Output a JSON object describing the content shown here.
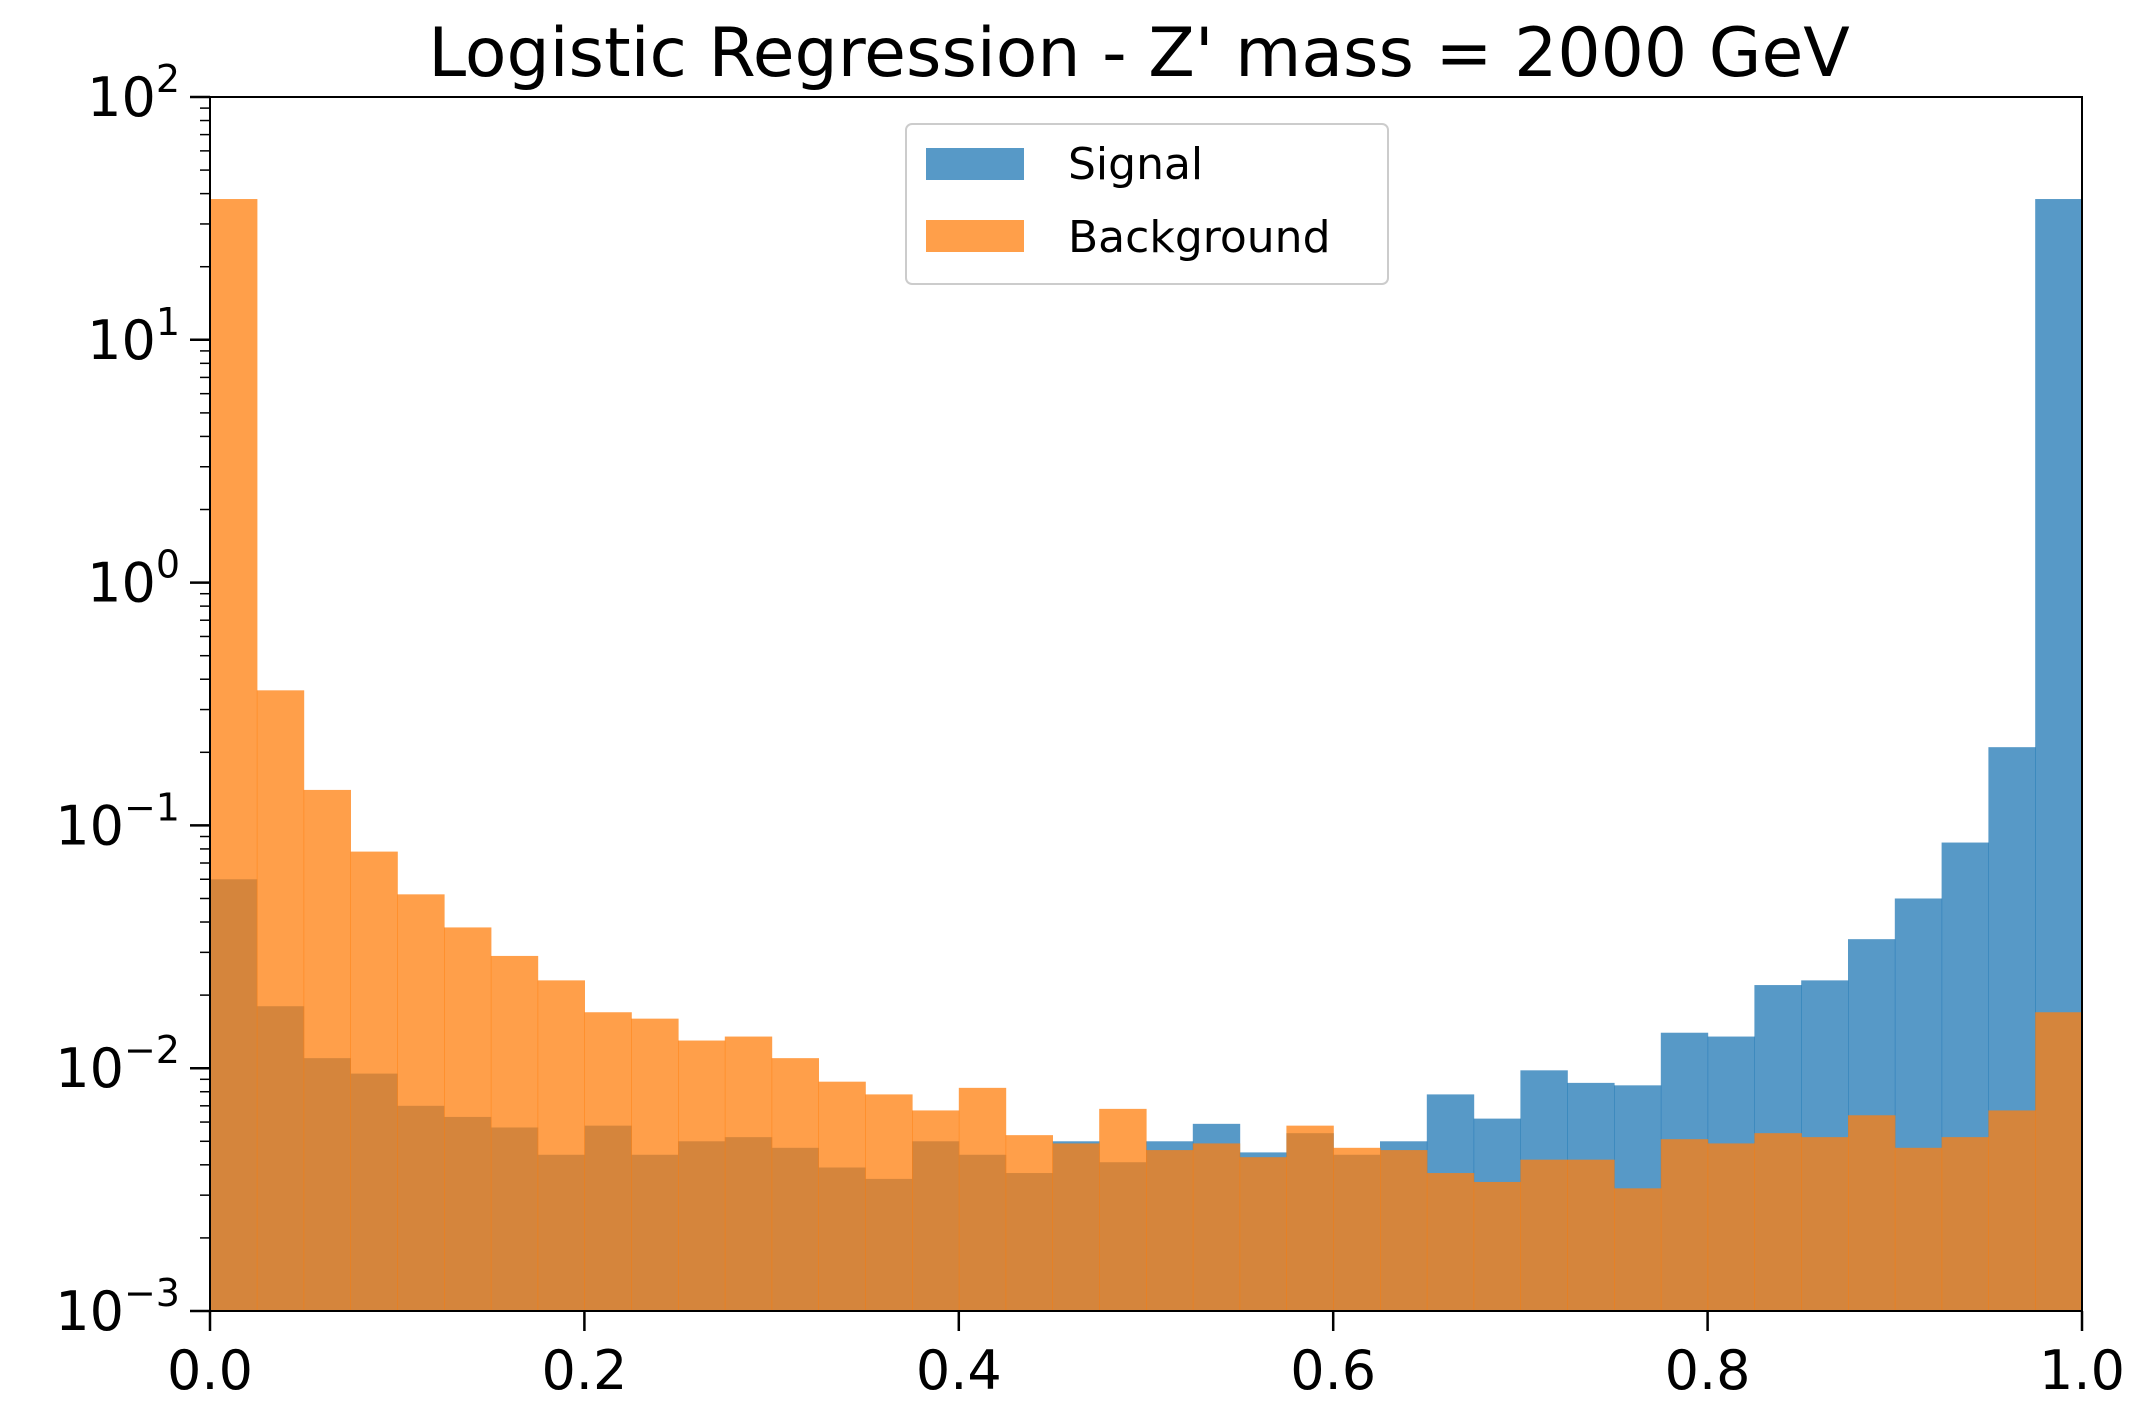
{
  "chart_data": {
    "type": "bar",
    "title": "Logistic Regression - Z' mass = 2000 GeV",
    "xlabel": "",
    "ylabel": "",
    "x_scale": "linear",
    "y_scale": "log",
    "xlim": [
      0.0,
      1.0
    ],
    "ylim": [
      0.001,
      100
    ],
    "bins": 40,
    "x_ticks": [
      0.0,
      0.2,
      0.4,
      0.6,
      0.8,
      1.0
    ],
    "x_tick_labels": [
      "0.0",
      "0.2",
      "0.4",
      "0.6",
      "0.8",
      "1.0"
    ],
    "y_ticks": [
      {
        "value": 0.001,
        "base": "10",
        "exp": "−3"
      },
      {
        "value": 0.01,
        "base": "10",
        "exp": "−2"
      },
      {
        "value": 0.1,
        "base": "10",
        "exp": "−1"
      },
      {
        "value": 1,
        "base": "10",
        "exp": "0"
      },
      {
        "value": 10,
        "base": "10",
        "exp": "1"
      },
      {
        "value": 100,
        "base": "10",
        "exp": "2"
      }
    ],
    "grid": false,
    "legend_position": "top-center",
    "series": [
      {
        "name": "Signal",
        "color": "#1f77b4",
        "alpha": 0.75,
        "values": [
          0.06,
          0.018,
          0.011,
          0.0095,
          0.007,
          0.0063,
          0.0057,
          0.0044,
          0.0058,
          0.0044,
          0.005,
          0.0052,
          0.0047,
          0.0039,
          0.0035,
          0.005,
          0.0044,
          0.0037,
          0.005,
          0.0041,
          0.005,
          0.0059,
          0.0045,
          0.0054,
          0.0044,
          0.005,
          0.0078,
          0.0062,
          0.0098,
          0.0087,
          0.0085,
          0.014,
          0.0135,
          0.022,
          0.023,
          0.034,
          0.05,
          0.085,
          0.21,
          38
        ]
      },
      {
        "name": "Background",
        "color": "#ff7f0e",
        "alpha": 0.75,
        "values": [
          38,
          0.36,
          0.14,
          0.078,
          0.052,
          0.038,
          0.029,
          0.023,
          0.017,
          0.016,
          0.013,
          0.0135,
          0.011,
          0.0088,
          0.0078,
          0.0067,
          0.0083,
          0.0053,
          0.0049,
          0.0068,
          0.0046,
          0.0049,
          0.0043,
          0.0058,
          0.0047,
          0.0046,
          0.0037,
          0.0034,
          0.0042,
          0.0042,
          0.0032,
          0.0051,
          0.0049,
          0.0054,
          0.0052,
          0.0064,
          0.0047,
          0.0052,
          0.0067,
          0.017
        ]
      }
    ]
  }
}
